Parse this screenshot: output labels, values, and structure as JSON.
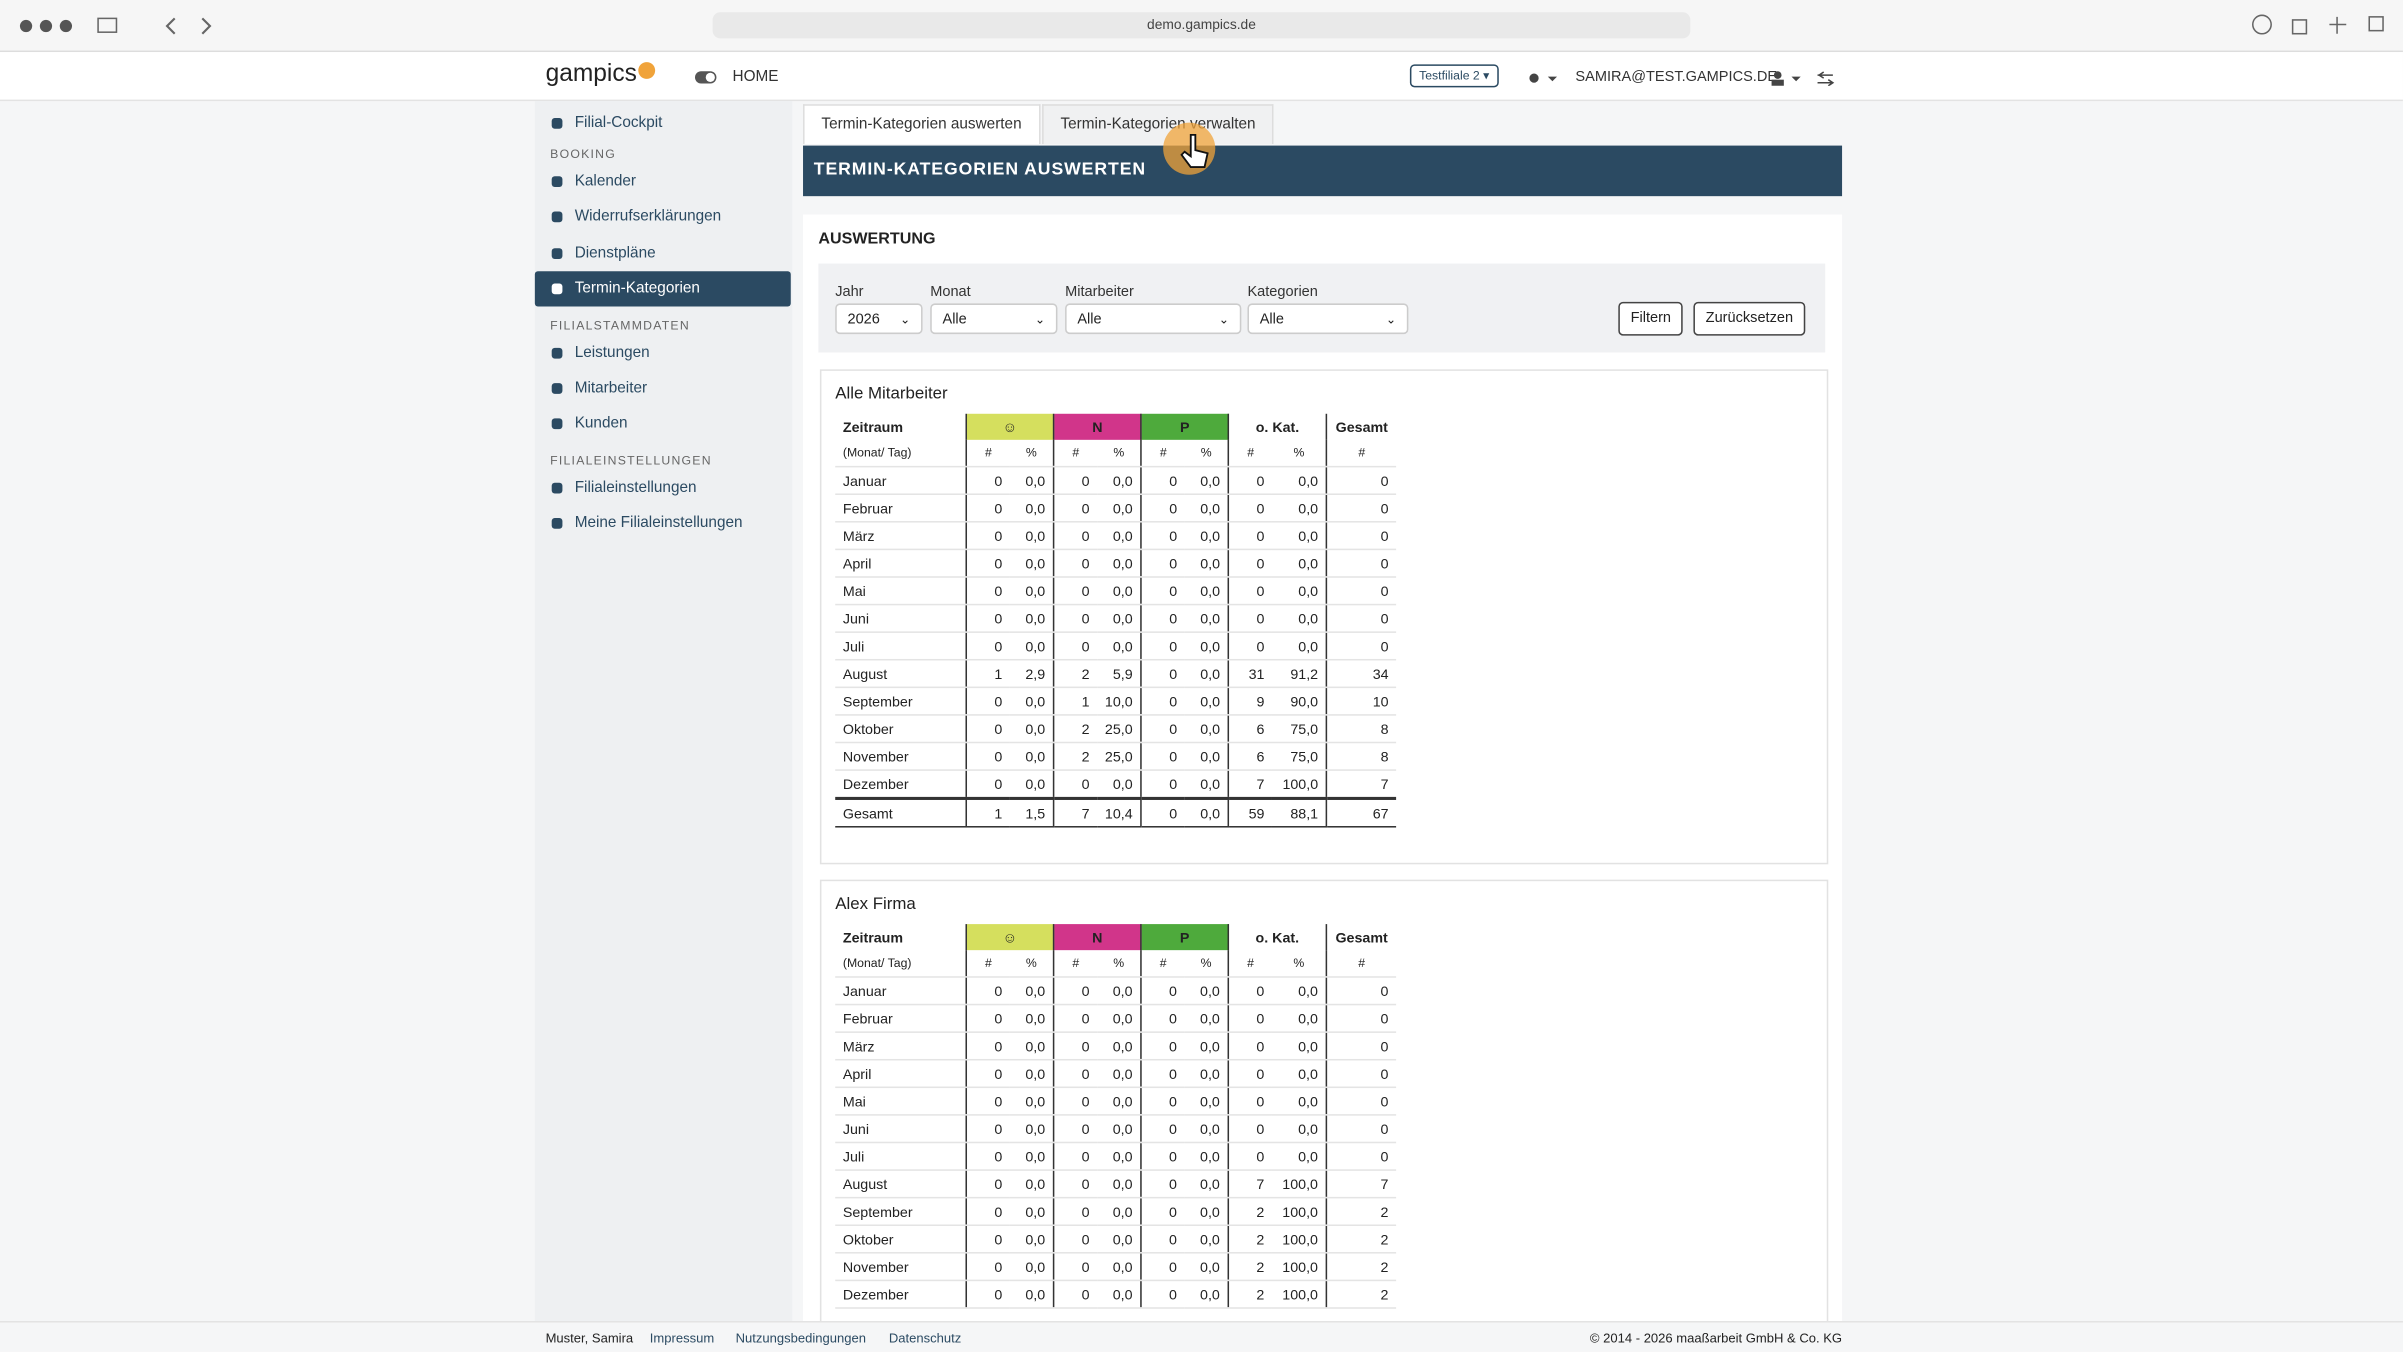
{
  "browser": {
    "url": "demo.gampics.de"
  },
  "header": {
    "logo": "gampics",
    "home": "HOME",
    "branch": "Testfiliale 2",
    "user": "SAMIRA@TEST.GAMPICS.DE"
  },
  "sidebar": {
    "top": "Filial-Cockpit",
    "sections": [
      {
        "title": "BOOKING",
        "items": [
          {
            "label": "Kalender"
          },
          {
            "label": "Widerrufserklärungen"
          },
          {
            "label": "Dienstpläne"
          },
          {
            "label": "Termin-Kategorien",
            "active": true
          }
        ]
      },
      {
        "title": "FILIALSTAMMDATEN",
        "items": [
          {
            "label": "Leistungen"
          },
          {
            "label": "Mitarbeiter"
          },
          {
            "label": "Kunden"
          }
        ]
      },
      {
        "title": "FILIALEINSTELLUNGEN",
        "items": [
          {
            "label": "Filialeinstellungen"
          },
          {
            "label": "Meine Filialeinstellungen"
          }
        ]
      }
    ]
  },
  "tabs": [
    "Termin-Kategorien auswerten",
    "Termin-Kategorien verwalten"
  ],
  "panel": {
    "title": "TERMIN-KATEGORIEN AUSWERTEN",
    "section": "AUSWERTUNG"
  },
  "filters": [
    {
      "label": "Jahr",
      "value": "2026"
    },
    {
      "label": "Monat",
      "value": "Alle"
    },
    {
      "label": "Mitarbeiter",
      "value": "Alle"
    },
    {
      "label": "Kategorien",
      "value": "Alle"
    }
  ],
  "buttons": [
    "Filtern",
    "Zurücksetzen"
  ],
  "table_header": {
    "first": "Zeitraum",
    "first_sub": "(Monat/ Tag)",
    "groups": [
      {
        "label": "☺",
        "color": "#d5df5e",
        "sub": [
          "#",
          "%"
        ]
      },
      {
        "label": "N",
        "color": "#d1358a",
        "sub": [
          "#",
          "%"
        ]
      },
      {
        "label": "P",
        "color": "#4eaa3c",
        "sub": [
          "#",
          "%"
        ]
      },
      {
        "label": "o. Kat.",
        "color": "#ffffff",
        "sub": [
          "#",
          "%"
        ]
      },
      {
        "label": "Gesamt",
        "color": "#ffffff",
        "sub": [
          "#"
        ]
      }
    ]
  },
  "tables": [
    {
      "title": "Alle Mitarbeiter",
      "rows": [
        [
          "Januar",
          0,
          "0,0",
          0,
          "0,0",
          0,
          "0,0",
          0,
          "0,0",
          0
        ],
        [
          "Februar",
          0,
          "0,0",
          0,
          "0,0",
          0,
          "0,0",
          0,
          "0,0",
          0
        ],
        [
          "März",
          0,
          "0,0",
          0,
          "0,0",
          0,
          "0,0",
          0,
          "0,0",
          0
        ],
        [
          "April",
          0,
          "0,0",
          0,
          "0,0",
          0,
          "0,0",
          0,
          "0,0",
          0
        ],
        [
          "Mai",
          0,
          "0,0",
          0,
          "0,0",
          0,
          "0,0",
          0,
          "0,0",
          0
        ],
        [
          "Juni",
          0,
          "0,0",
          0,
          "0,0",
          0,
          "0,0",
          0,
          "0,0",
          0
        ],
        [
          "Juli",
          0,
          "0,0",
          0,
          "0,0",
          0,
          "0,0",
          0,
          "0,0",
          0
        ],
        [
          "August",
          1,
          "2,9",
          2,
          "5,9",
          0,
          "0,0",
          31,
          "91,2",
          34
        ],
        [
          "September",
          0,
          "0,0",
          1,
          "10,0",
          0,
          "0,0",
          9,
          "90,0",
          10
        ],
        [
          "Oktober",
          0,
          "0,0",
          2,
          "25,0",
          0,
          "0,0",
          6,
          "75,0",
          8
        ],
        [
          "November",
          0,
          "0,0",
          2,
          "25,0",
          0,
          "0,0",
          6,
          "75,0",
          8
        ],
        [
          "Dezember",
          0,
          "0,0",
          0,
          "0,0",
          0,
          "0,0",
          7,
          "100,0",
          7
        ]
      ],
      "total": [
        "Gesamt",
        1,
        "1,5",
        7,
        "10,4",
        0,
        "0,0",
        59,
        "88,1",
        67
      ]
    },
    {
      "title": "Alex Firma",
      "rows": [
        [
          "Januar",
          0,
          "0,0",
          0,
          "0,0",
          0,
          "0,0",
          0,
          "0,0",
          0
        ],
        [
          "Februar",
          0,
          "0,0",
          0,
          "0,0",
          0,
          "0,0",
          0,
          "0,0",
          0
        ],
        [
          "März",
          0,
          "0,0",
          0,
          "0,0",
          0,
          "0,0",
          0,
          "0,0",
          0
        ],
        [
          "April",
          0,
          "0,0",
          0,
          "0,0",
          0,
          "0,0",
          0,
          "0,0",
          0
        ],
        [
          "Mai",
          0,
          "0,0",
          0,
          "0,0",
          0,
          "0,0",
          0,
          "0,0",
          0
        ],
        [
          "Juni",
          0,
          "0,0",
          0,
          "0,0",
          0,
          "0,0",
          0,
          "0,0",
          0
        ],
        [
          "Juli",
          0,
          "0,0",
          0,
          "0,0",
          0,
          "0,0",
          0,
          "0,0",
          0
        ],
        [
          "August",
          0,
          "0,0",
          0,
          "0,0",
          0,
          "0,0",
          7,
          "100,0",
          7
        ],
        [
          "September",
          0,
          "0,0",
          0,
          "0,0",
          0,
          "0,0",
          2,
          "100,0",
          2
        ],
        [
          "Oktober",
          0,
          "0,0",
          0,
          "0,0",
          0,
          "0,0",
          2,
          "100,0",
          2
        ],
        [
          "November",
          0,
          "0,0",
          0,
          "0,0",
          0,
          "0,0",
          2,
          "100,0",
          2
        ],
        [
          "Dezember",
          0,
          "0,0",
          0,
          "0,0",
          0,
          "0,0",
          2,
          "100,0",
          2
        ]
      ]
    }
  ],
  "footer": {
    "name": "Muster, Samira",
    "links": [
      "Impressum",
      "Nutzungsbedingungen",
      "Datenschutz"
    ],
    "copyright": "© 2014 - 2026 maaßarbeit GmbH & Co. KG"
  }
}
